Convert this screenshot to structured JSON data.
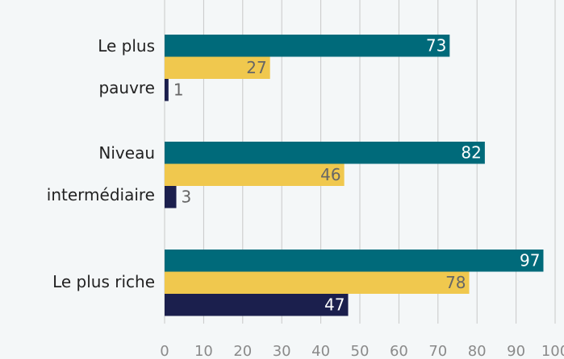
{
  "chart_data": {
    "type": "hbar",
    "categories": [
      [
        "Le plus",
        "pauvre"
      ],
      [
        "Niveau",
        "intermédiaire"
      ],
      [
        "Le plus riche"
      ]
    ],
    "series": [
      {
        "color": "#006a7a",
        "values": [
          73,
          82,
          97
        ]
      },
      {
        "color": "#f0c84e",
        "values": [
          27,
          46,
          78
        ]
      },
      {
        "color": "#1b1f4d",
        "values": [
          1,
          3,
          47
        ]
      }
    ],
    "xlim": [
      0,
      100
    ],
    "xticks": [
      0,
      10,
      20,
      30,
      40,
      50,
      60,
      70,
      80,
      90,
      100
    ],
    "grid": true
  }
}
